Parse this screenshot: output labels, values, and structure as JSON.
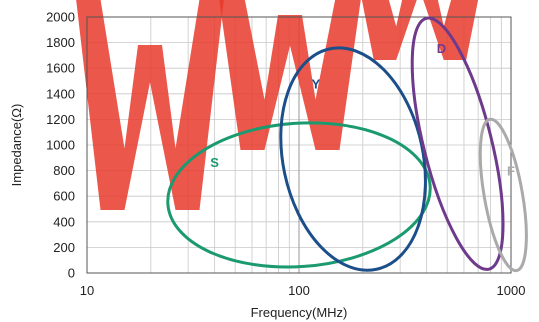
{
  "chart_data": {
    "type": "scatter",
    "title": "",
    "xlabel": "Frequency(MHz)",
    "ylabel": "Impedance(Ω)",
    "x_scale": "log",
    "xlim": [
      10,
      1000
    ],
    "ylim": [
      0,
      2000
    ],
    "x_tick_labels": [
      "10",
      "100",
      "1000"
    ],
    "x_ticks": [
      10,
      100,
      1000
    ],
    "y_ticks": [
      0,
      200,
      400,
      600,
      800,
      1000,
      1200,
      1400,
      1600,
      1800,
      2000
    ],
    "y_tick_labels": [
      "0",
      "200",
      "400",
      "600",
      "800",
      "1000",
      "1200",
      "1400",
      "1600",
      "1800",
      "2000"
    ],
    "grid": true,
    "legend": "none",
    "series": [
      {
        "name": "S",
        "color": "#1a9a6e",
        "shape": "ellipse",
        "label_pos": {
          "x": 40,
          "y": 830
        },
        "ellipse": {
          "center_x": 100,
          "center_y": 610,
          "semi_width_decades": 0.62,
          "semi_height_ohms": 560,
          "tilt_deg": -4
        }
      },
      {
        "name": "Y",
        "color": "#1c4f8a",
        "shape": "ellipse",
        "label_pos": {
          "x": 120,
          "y": 1440
        },
        "ellipse": {
          "center_x": 180,
          "center_y": 890,
          "semi_width_decades": 0.33,
          "semi_height_ohms": 880,
          "tilt_deg": -12
        }
      },
      {
        "name": "D",
        "color": "#6e3a8c",
        "shape": "ellipse",
        "label_pos": {
          "x": 470,
          "y": 1720
        },
        "ellipse": {
          "center_x": 560,
          "center_y": 1010,
          "semi_width_decades": 0.16,
          "semi_height_ohms": 1010,
          "tilt_deg": -14
        }
      },
      {
        "name": "F",
        "color": "#aaaaaa",
        "shape": "ellipse",
        "label_pos": {
          "x": 1000,
          "y": 760
        },
        "ellipse": {
          "center_x": 920,
          "center_y": 610,
          "semi_width_decades": 0.09,
          "semi_height_ohms": 600,
          "tilt_deg": -10
        }
      }
    ]
  },
  "watermark": {
    "text": "WWW",
    "color": "#e8392b"
  }
}
